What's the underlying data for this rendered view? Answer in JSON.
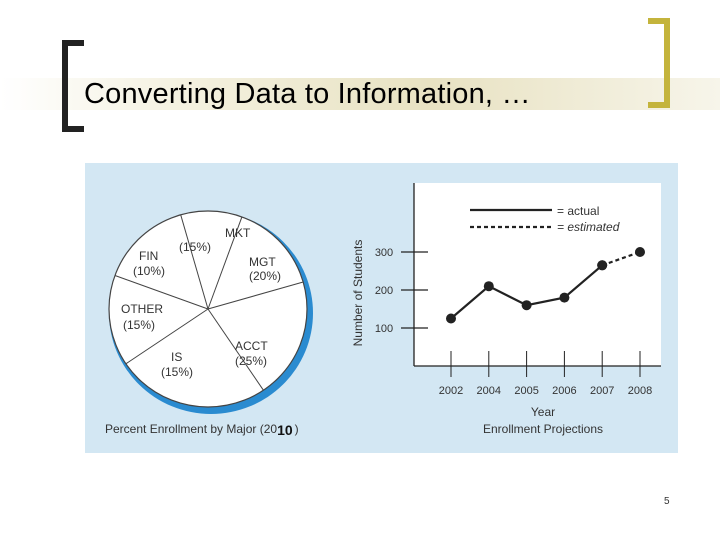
{
  "slide": {
    "title": "Converting Data to Information, …",
    "page_number": "5"
  },
  "colors": {
    "figure_bg": "#d3e7f3",
    "accent_bracket": "#c4b43c",
    "ink": "#222222"
  },
  "chart_data": [
    {
      "type": "pie",
      "caption": "Percent Enrollment by Major (20",
      "caption_year_tail": "10",
      "caption_close": ")",
      "slices": [
        {
          "label": "MKT",
          "pct_label": "(15%)",
          "value": 15
        },
        {
          "label": "MGT",
          "pct_label": "(20%)",
          "value": 20
        },
        {
          "label": "ACCT",
          "pct_label": "(25%)",
          "value": 25
        },
        {
          "label": "IS",
          "pct_label": "(15%)",
          "value": 15
        },
        {
          "label": "OTHER",
          "pct_label": "(15%)",
          "value": 15
        },
        {
          "label": "FIN",
          "pct_label": "(10%)",
          "value": 10
        }
      ]
    },
    {
      "type": "line",
      "caption": "Enrollment Projections",
      "xlabel": "Year",
      "ylabel": "Number of Students",
      "categories": [
        "2002",
        "2004",
        "2005",
        "2006",
        "2007",
        "2008"
      ],
      "y_ticks": [
        "100",
        "200",
        "300"
      ],
      "ylim": [
        0,
        350
      ],
      "legend": {
        "actual": "= actual",
        "estimated": "= estimated",
        "position": "top-right"
      },
      "series": [
        {
          "name": "actual",
          "values": [
            125,
            210,
            160,
            180,
            265,
            null
          ]
        },
        {
          "name": "estimated",
          "values": [
            null,
            null,
            null,
            null,
            265,
            300
          ]
        }
      ]
    }
  ]
}
